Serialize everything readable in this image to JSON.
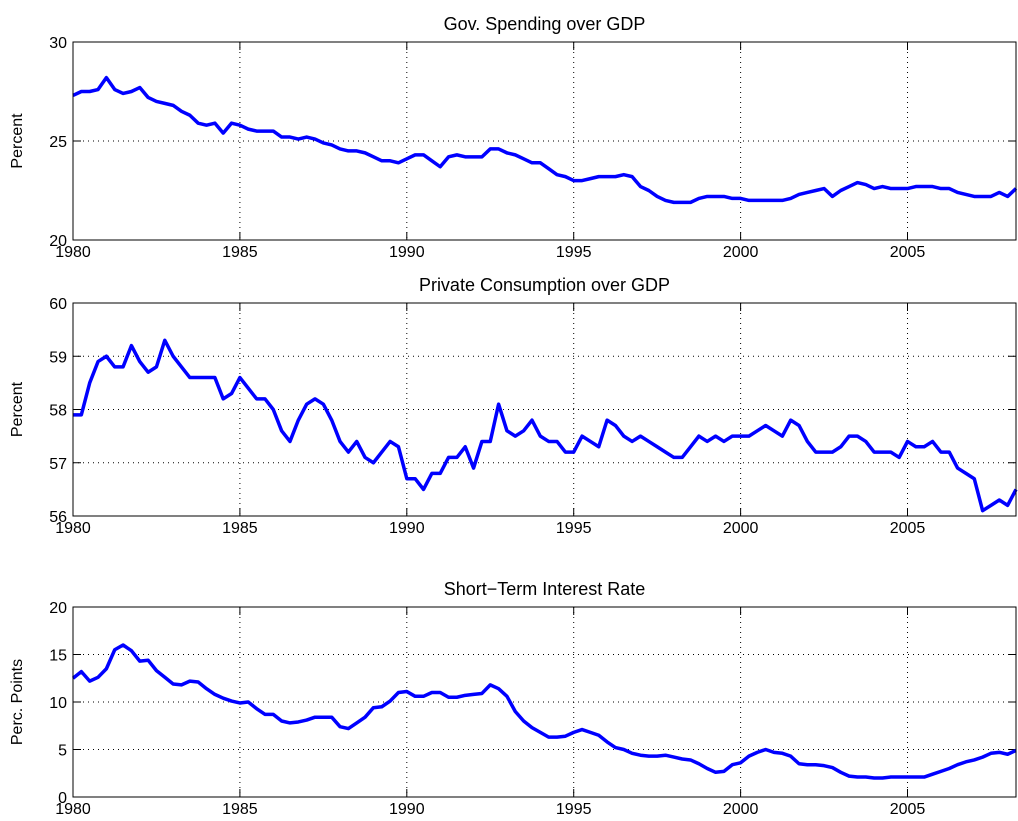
{
  "chart_data": [
    {
      "type": "line",
      "title": "Gov. Spending over GDP",
      "y_label": "Percent",
      "color": "#0000ff",
      "grid": true,
      "xlim": [
        1980,
        2008.25
      ],
      "xticks": [
        1980,
        1985,
        1990,
        1995,
        2000,
        2005
      ],
      "ylim": [
        20,
        30
      ],
      "yticks": [
        20,
        25,
        30
      ],
      "x": [
        1980,
        1980.25,
        1980.5,
        1980.75,
        1981,
        1981.25,
        1981.5,
        1981.75,
        1982,
        1982.25,
        1982.5,
        1982.75,
        1983,
        1983.25,
        1983.5,
        1983.75,
        1984,
        1984.25,
        1984.5,
        1984.75,
        1985,
        1985.25,
        1985.5,
        1985.75,
        1986,
        1986.25,
        1986.5,
        1986.75,
        1987,
        1987.25,
        1987.5,
        1987.75,
        1988,
        1988.25,
        1988.5,
        1988.75,
        1989,
        1989.25,
        1989.5,
        1989.75,
        1990,
        1990.25,
        1990.5,
        1990.75,
        1991,
        1991.25,
        1991.5,
        1991.75,
        1992,
        1992.25,
        1992.5,
        1992.75,
        1993,
        1993.25,
        1993.5,
        1993.75,
        1994,
        1994.25,
        1994.5,
        1994.75,
        1995,
        1995.25,
        1995.5,
        1995.75,
        1996,
        1996.25,
        1996.5,
        1996.75,
        1997,
        1997.25,
        1997.5,
        1997.75,
        1998,
        1998.25,
        1998.5,
        1998.75,
        1999,
        1999.25,
        1999.5,
        1999.75,
        2000,
        2000.25,
        2000.5,
        2000.75,
        2001,
        2001.25,
        2001.5,
        2001.75,
        2002,
        2002.25,
        2002.5,
        2002.75,
        2003,
        2003.25,
        2003.5,
        2003.75,
        2004,
        2004.25,
        2004.5,
        2004.75,
        2005,
        2005.25,
        2005.5,
        2005.75,
        2006,
        2006.25,
        2006.5,
        2006.75,
        2007,
        2007.25,
        2007.5,
        2007.75,
        2008,
        2008.25
      ],
      "values": [
        27.3,
        27.5,
        27.5,
        27.6,
        28.2,
        27.6,
        27.4,
        27.5,
        27.7,
        27.2,
        27.0,
        26.9,
        26.8,
        26.5,
        26.3,
        25.9,
        25.8,
        25.9,
        25.4,
        25.9,
        25.8,
        25.6,
        25.5,
        25.5,
        25.5,
        25.2,
        25.2,
        25.1,
        25.2,
        25.1,
        24.9,
        24.8,
        24.6,
        24.5,
        24.5,
        24.4,
        24.2,
        24.0,
        24.0,
        23.9,
        24.1,
        24.3,
        24.3,
        24.0,
        23.7,
        24.2,
        24.3,
        24.2,
        24.2,
        24.2,
        24.6,
        24.6,
        24.4,
        24.3,
        24.1,
        23.9,
        23.9,
        23.6,
        23.3,
        23.2,
        23.0,
        23.0,
        23.1,
        23.2,
        23.2,
        23.2,
        23.3,
        23.2,
        22.7,
        22.5,
        22.2,
        22.0,
        21.9,
        21.9,
        21.9,
        22.1,
        22.2,
        22.2,
        22.2,
        22.1,
        22.1,
        22.0,
        22.0,
        22.0,
        22.0,
        22.0,
        22.1,
        22.3,
        22.4,
        22.5,
        22.6,
        22.2,
        22.5,
        22.7,
        22.9,
        22.8,
        22.6,
        22.7,
        22.6,
        22.6,
        22.6,
        22.7,
        22.7,
        22.7,
        22.6,
        22.6,
        22.4,
        22.3,
        22.2,
        22.2,
        22.2,
        22.4,
        22.2,
        22.6
      ]
    },
    {
      "type": "line",
      "title": "Private Consumption over GDP",
      "y_label": "Percent",
      "color": "#0000ff",
      "grid": true,
      "xlim": [
        1980,
        2008.25
      ],
      "xticks": [
        1980,
        1985,
        1990,
        1995,
        2000,
        2005
      ],
      "ylim": [
        56,
        60
      ],
      "yticks": [
        56,
        57,
        58,
        59,
        60
      ],
      "x": [
        1980,
        1980.25,
        1980.5,
        1980.75,
        1981,
        1981.25,
        1981.5,
        1981.75,
        1982,
        1982.25,
        1982.5,
        1982.75,
        1983,
        1983.25,
        1983.5,
        1983.75,
        1984,
        1984.25,
        1984.5,
        1984.75,
        1985,
        1985.25,
        1985.5,
        1985.75,
        1986,
        1986.25,
        1986.5,
        1986.75,
        1987,
        1987.25,
        1987.5,
        1987.75,
        1988,
        1988.25,
        1988.5,
        1988.75,
        1989,
        1989.25,
        1989.5,
        1989.75,
        1990,
        1990.25,
        1990.5,
        1990.75,
        1991,
        1991.25,
        1991.5,
        1991.75,
        1992,
        1992.25,
        1992.5,
        1992.75,
        1993,
        1993.25,
        1993.5,
        1993.75,
        1994,
        1994.25,
        1994.5,
        1994.75,
        1995,
        1995.25,
        1995.5,
        1995.75,
        1996,
        1996.25,
        1996.5,
        1996.75,
        1997,
        1997.25,
        1997.5,
        1997.75,
        1998,
        1998.25,
        1998.5,
        1998.75,
        1999,
        1999.25,
        1999.5,
        1999.75,
        2000,
        2000.25,
        2000.5,
        2000.75,
        2001,
        2001.25,
        2001.5,
        2001.75,
        2002,
        2002.25,
        2002.5,
        2002.75,
        2003,
        2003.25,
        2003.5,
        2003.75,
        2004,
        2004.25,
        2004.5,
        2004.75,
        2005,
        2005.25,
        2005.5,
        2005.75,
        2006,
        2006.25,
        2006.5,
        2006.75,
        2007,
        2007.25,
        2007.5,
        2007.75,
        2008,
        2008.25
      ],
      "values": [
        57.9,
        57.9,
        58.5,
        58.9,
        59.0,
        58.8,
        58.8,
        59.2,
        58.9,
        58.7,
        58.8,
        59.3,
        59.0,
        58.8,
        58.6,
        58.6,
        58.6,
        58.6,
        58.2,
        58.3,
        58.6,
        58.4,
        58.2,
        58.2,
        58.0,
        57.6,
        57.4,
        57.8,
        58.1,
        58.2,
        58.1,
        57.8,
        57.4,
        57.2,
        57.4,
        57.1,
        57.0,
        57.2,
        57.4,
        57.3,
        56.7,
        56.7,
        56.5,
        56.8,
        56.8,
        57.1,
        57.1,
        57.3,
        56.9,
        57.4,
        57.4,
        58.1,
        57.6,
        57.5,
        57.6,
        57.8,
        57.5,
        57.4,
        57.4,
        57.2,
        57.2,
        57.5,
        57.4,
        57.3,
        57.8,
        57.7,
        57.5,
        57.4,
        57.5,
        57.4,
        57.3,
        57.2,
        57.1,
        57.1,
        57.3,
        57.5,
        57.4,
        57.5,
        57.4,
        57.5,
        57.5,
        57.5,
        57.6,
        57.7,
        57.6,
        57.5,
        57.8,
        57.7,
        57.4,
        57.2,
        57.2,
        57.2,
        57.3,
        57.5,
        57.5,
        57.4,
        57.2,
        57.2,
        57.2,
        57.1,
        57.4,
        57.3,
        57.3,
        57.4,
        57.2,
        57.2,
        56.9,
        56.8,
        56.7,
        56.1,
        56.2,
        56.3,
        56.2,
        56.5
      ]
    },
    {
      "type": "line",
      "title": "Short−Term Interest Rate",
      "y_label": "Perc. Points",
      "color": "#0000ff",
      "grid": true,
      "xlim": [
        1980,
        2008.25
      ],
      "xticks": [
        1980,
        1985,
        1990,
        1995,
        2000,
        2005
      ],
      "ylim": [
        0,
        20
      ],
      "yticks": [
        0,
        5,
        10,
        15,
        20
      ],
      "x": [
        1980,
        1980.25,
        1980.5,
        1980.75,
        1981,
        1981.25,
        1981.5,
        1981.75,
        1982,
        1982.25,
        1982.5,
        1982.75,
        1983,
        1983.25,
        1983.5,
        1983.75,
        1984,
        1984.25,
        1984.5,
        1984.75,
        1985,
        1985.25,
        1985.5,
        1985.75,
        1986,
        1986.25,
        1986.5,
        1986.75,
        1987,
        1987.25,
        1987.5,
        1987.75,
        1988,
        1988.25,
        1988.5,
        1988.75,
        1989,
        1989.25,
        1989.5,
        1989.75,
        1990,
        1990.25,
        1990.5,
        1990.75,
        1991,
        1991.25,
        1991.5,
        1991.75,
        1992,
        1992.25,
        1992.5,
        1992.75,
        1993,
        1993.25,
        1993.5,
        1993.75,
        1994,
        1994.25,
        1994.5,
        1994.75,
        1995,
        1995.25,
        1995.5,
        1995.75,
        1996,
        1996.25,
        1996.5,
        1996.75,
        1997,
        1997.25,
        1997.5,
        1997.75,
        1998,
        1998.25,
        1998.5,
        1998.75,
        1999,
        1999.25,
        1999.5,
        1999.75,
        2000,
        2000.25,
        2000.5,
        2000.75,
        2001,
        2001.25,
        2001.5,
        2001.75,
        2002,
        2002.25,
        2002.5,
        2002.75,
        2003,
        2003.25,
        2003.5,
        2003.75,
        2004,
        2004.25,
        2004.5,
        2004.75,
        2005,
        2005.25,
        2005.5,
        2005.75,
        2006,
        2006.25,
        2006.5,
        2006.75,
        2007,
        2007.25,
        2007.5,
        2007.75,
        2008,
        2008.25
      ],
      "values": [
        12.5,
        13.2,
        12.2,
        12.6,
        13.5,
        15.5,
        16.0,
        15.4,
        14.3,
        14.4,
        13.3,
        12.6,
        11.9,
        11.8,
        12.2,
        12.1,
        11.4,
        10.8,
        10.4,
        10.1,
        9.9,
        10.0,
        9.3,
        8.7,
        8.7,
        8.0,
        7.8,
        7.9,
        8.1,
        8.4,
        8.4,
        8.4,
        7.4,
        7.2,
        7.8,
        8.4,
        9.4,
        9.5,
        10.1,
        11.0,
        11.1,
        10.6,
        10.6,
        11.0,
        11.0,
        10.5,
        10.5,
        10.7,
        10.8,
        10.9,
        11.8,
        11.4,
        10.6,
        9.0,
        8.0,
        7.3,
        6.8,
        6.3,
        6.3,
        6.4,
        6.8,
        7.1,
        6.8,
        6.5,
        5.8,
        5.2,
        5.0,
        4.6,
        4.4,
        4.3,
        4.3,
        4.4,
        4.2,
        4.0,
        3.9,
        3.5,
        3.0,
        2.6,
        2.7,
        3.4,
        3.6,
        4.3,
        4.7,
        5.0,
        4.7,
        4.6,
        4.3,
        3.5,
        3.4,
        3.4,
        3.3,
        3.1,
        2.6,
        2.2,
        2.1,
        2.1,
        2.0,
        2.0,
        2.1,
        2.1,
        2.1,
        2.1,
        2.1,
        2.4,
        2.7,
        3.0,
        3.4,
        3.7,
        3.9,
        4.2,
        4.6,
        4.7,
        4.5,
        4.9
      ]
    }
  ]
}
